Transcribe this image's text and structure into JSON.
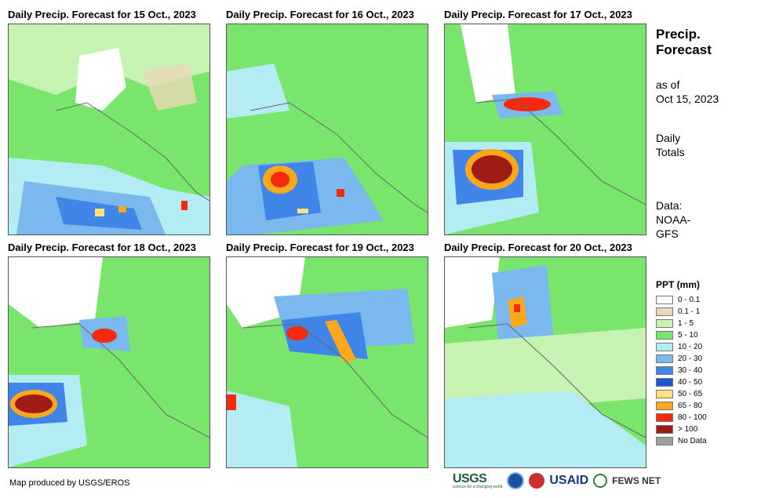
{
  "panels": [
    {
      "title": "Daily Precip. Forecast for 15 Oct., 2023"
    },
    {
      "title": "Daily Precip. Forecast for 16 Oct., 2023"
    },
    {
      "title": "Daily Precip. Forecast for 17 Oct., 2023"
    },
    {
      "title": "Daily Precip. Forecast for 18 Oct., 2023"
    },
    {
      "title": "Daily Precip. Forecast for 19 Oct., 2023"
    },
    {
      "title": "Daily Precip. Forecast for 20 Oct., 2023"
    }
  ],
  "side": {
    "title": "Precip. Forecast",
    "as_of_label": "as of",
    "as_of_date": "Oct 15, 2023",
    "totals_line1": "Daily",
    "totals_line2": "Totals",
    "data_line1": "Data:",
    "data_line2": "NOAA-",
    "data_line3": "GFS"
  },
  "legend": {
    "title": "PPT (mm)",
    "items": [
      {
        "label": "0 - 0.1",
        "color": "#ffffff"
      },
      {
        "label": "0.1 - 1",
        "color": "#ebd8b4"
      },
      {
        "label": "1 - 5",
        "color": "#c6f2b2"
      },
      {
        "label": "5 - 10",
        "color": "#79e56c"
      },
      {
        "label": "10 - 20",
        "color": "#b4ecf4"
      },
      {
        "label": "20 - 30",
        "color": "#7bb8ee"
      },
      {
        "label": "30 - 40",
        "color": "#3f86e8"
      },
      {
        "label": "40 - 50",
        "color": "#1f55d0"
      },
      {
        "label": "50 - 65",
        "color": "#ffe37a"
      },
      {
        "label": "65 - 80",
        "color": "#fba81c"
      },
      {
        "label": "80 - 100",
        "color": "#f52a0c"
      },
      {
        "label": "> 100",
        "color": "#9e1b16"
      },
      {
        "label": "No Data",
        "color": "#a0a0a0"
      }
    ]
  },
  "credit": "Map produced by USGS/EROS",
  "logos": {
    "usgs": "USGS",
    "usgs_tagline": "science for a changing world",
    "usaid": "USAID",
    "fews": "FEWS NET"
  }
}
